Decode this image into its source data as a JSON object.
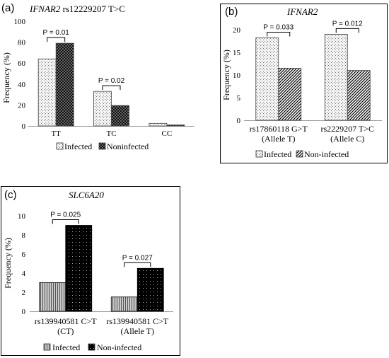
{
  "chart_data": [
    {
      "panel": "(a)",
      "type": "bar",
      "title_gene": "IFNAR2",
      "title_rest": " rs12229207 T>C",
      "ylabel": "Frequency (%)",
      "ylim": [
        0,
        100
      ],
      "yticks": [
        0,
        20,
        40,
        60,
        80,
        100
      ],
      "categories": [
        "TT",
        "TC",
        "CC"
      ],
      "series": [
        {
          "name": "Infected",
          "values": [
            64,
            33,
            2.5
          ],
          "pattern": "dots-light"
        },
        {
          "name": "Noninfected",
          "values": [
            79,
            19.5,
            1
          ],
          "pattern": "checker-dark"
        }
      ],
      "annotations": [
        {
          "text": "P = 0.01",
          "category_index": 0
        },
        {
          "text": "P = 0.02",
          "category_index": 1
        }
      ]
    },
    {
      "panel": "(b)",
      "type": "bar",
      "title_gene": "IFNAR2",
      "title_rest": "",
      "ylabel": "Frequency (%)",
      "ylim": [
        0,
        20
      ],
      "yticks": [
        0,
        5,
        10,
        15,
        20
      ],
      "categories": [
        [
          "rs17860118 G>T",
          "(Allele T)"
        ],
        [
          "rs2229207 T>C",
          "(Allele C)"
        ]
      ],
      "series": [
        {
          "name": "Infected",
          "values": [
            18.2,
            19
          ],
          "pattern": "dots-light"
        },
        {
          "name": "Non-infected",
          "values": [
            11.5,
            11
          ],
          "pattern": "hatch-dark"
        }
      ],
      "annotations": [
        {
          "text": "P = 0.033",
          "category_index": 0
        },
        {
          "text": "P = 0.012",
          "category_index": 1
        }
      ]
    },
    {
      "panel": "(c)",
      "type": "bar",
      "title_gene": "SLC6A20",
      "title_rest": "",
      "ylabel": "Frequency (%)",
      "ylim": [
        0,
        10
      ],
      "yticks": [
        0,
        2,
        4,
        6,
        8,
        10
      ],
      "categories": [
        [
          "rs139940581 C>T",
          "(CT)"
        ],
        [
          "rs139940581 C>T",
          "(Allele T)"
        ]
      ],
      "series": [
        {
          "name": "Infected",
          "values": [
            3,
            1.5
          ],
          "pattern": "vstripes"
        },
        {
          "name": "Non-infected",
          "values": [
            9,
            4.5
          ],
          "pattern": "black-dots"
        }
      ],
      "annotations": [
        {
          "text": "P = 0.025",
          "category_index": 0
        },
        {
          "text": "P = 0.027",
          "category_index": 1
        }
      ]
    }
  ]
}
